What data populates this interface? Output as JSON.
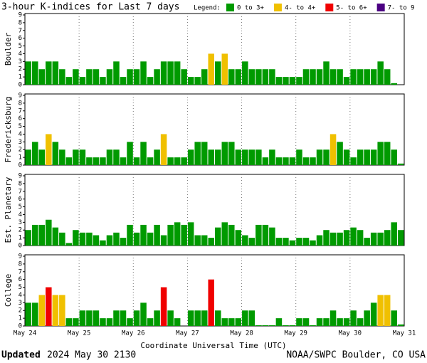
{
  "chart_data": {
    "type": "bar",
    "title": "3-hour K-indices for Last 7 days",
    "legend_title": "Legend:",
    "legend": [
      {
        "name": "0 to 3+",
        "color": "#009a00"
      },
      {
        "name": "4- to 4+",
        "color": "#f0c000"
      },
      {
        "name": "5- to 6+",
        "color": "#f00000"
      },
      {
        "name": "7- to 9",
        "color": "#4b0082"
      }
    ],
    "ylim": [
      0,
      9
    ],
    "yticks": [
      0,
      1,
      2,
      3,
      4,
      5,
      6,
      7,
      8,
      9
    ],
    "xticks": [
      "May 24",
      "May 25",
      "May 26",
      "May 27",
      "May 28",
      "May 29",
      "May 30",
      "May 31"
    ],
    "xlabel": "Coordinate Universal Time (UTC)",
    "panels": [
      {
        "name": "Boulder",
        "values": [
          3,
          3,
          2,
          3,
          3,
          2,
          1,
          2,
          1,
          2,
          2,
          1,
          2,
          3,
          1,
          2,
          2,
          3,
          1,
          2,
          3,
          3,
          3,
          2,
          1,
          1,
          2,
          4,
          3,
          4,
          2,
          2,
          3,
          2,
          2,
          2,
          2,
          1,
          1,
          1,
          1,
          2,
          2,
          2,
          3,
          2,
          2,
          1,
          2,
          2,
          2,
          2,
          3,
          2,
          0.2,
          null
        ],
        "colors": [
          "#009a00",
          "#009a00",
          "#009a00",
          "#009a00",
          "#009a00",
          "#009a00",
          "#009a00",
          "#009a00",
          "#009a00",
          "#009a00",
          "#009a00",
          "#009a00",
          "#009a00",
          "#009a00",
          "#009a00",
          "#009a00",
          "#009a00",
          "#009a00",
          "#009a00",
          "#009a00",
          "#009a00",
          "#009a00",
          "#009a00",
          "#009a00",
          "#009a00",
          "#009a00",
          "#009a00",
          "#f0c000",
          "#009a00",
          "#f0c000",
          "#009a00",
          "#009a00",
          "#009a00",
          "#009a00",
          "#009a00",
          "#009a00",
          "#009a00",
          "#009a00",
          "#009a00",
          "#009a00",
          "#009a00",
          "#009a00",
          "#009a00",
          "#009a00",
          "#009a00",
          "#009a00",
          "#009a00",
          "#009a00",
          "#009a00",
          "#009a00",
          "#009a00",
          "#009a00",
          "#009a00",
          "#009a00",
          "#009a00",
          "#009a00"
        ]
      },
      {
        "name": "Fredericksburg",
        "values": [
          2,
          3,
          2,
          4,
          3,
          2,
          1,
          2,
          2,
          1,
          1,
          1,
          2,
          2,
          1,
          3,
          1,
          3,
          1,
          2,
          4,
          1,
          1,
          1,
          2,
          3,
          3,
          2,
          2,
          3,
          3,
          2,
          2,
          2,
          2,
          1,
          2,
          1,
          1,
          1,
          2,
          1,
          1,
          2,
          2,
          4,
          3,
          2,
          1,
          2,
          2,
          2,
          3,
          3,
          2,
          0.2
        ],
        "colors": [
          "#009a00",
          "#009a00",
          "#009a00",
          "#f0c000",
          "#009a00",
          "#009a00",
          "#009a00",
          "#009a00",
          "#009a00",
          "#009a00",
          "#009a00",
          "#009a00",
          "#009a00",
          "#009a00",
          "#009a00",
          "#009a00",
          "#009a00",
          "#009a00",
          "#009a00",
          "#009a00",
          "#f0c000",
          "#009a00",
          "#009a00",
          "#009a00",
          "#009a00",
          "#009a00",
          "#009a00",
          "#009a00",
          "#009a00",
          "#009a00",
          "#009a00",
          "#009a00",
          "#009a00",
          "#009a00",
          "#009a00",
          "#009a00",
          "#009a00",
          "#009a00",
          "#009a00",
          "#009a00",
          "#009a00",
          "#009a00",
          "#009a00",
          "#009a00",
          "#009a00",
          "#f0c000",
          "#009a00",
          "#009a00",
          "#009a00",
          "#009a00",
          "#009a00",
          "#009a00",
          "#009a00",
          "#009a00",
          "#009a00",
          "#009a00"
        ]
      },
      {
        "name": "Est. Planetary",
        "values": [
          2,
          2.67,
          2.67,
          3.33,
          2.33,
          1.67,
          0.33,
          2,
          1.67,
          1.67,
          1.33,
          0.67,
          1.33,
          1.67,
          1,
          2.67,
          1.67,
          2.67,
          1.67,
          2.67,
          1.33,
          2.67,
          3,
          2.67,
          3,
          1.33,
          1.33,
          1,
          2.33,
          3,
          2.67,
          2,
          1.33,
          1,
          2.67,
          2.67,
          2.33,
          1,
          1,
          0.67,
          1,
          1,
          0.67,
          1.33,
          2,
          1.67,
          1.67,
          2,
          2.33,
          2,
          1,
          1.67,
          1.67,
          2,
          3,
          2
        ],
        "colors": [
          "#009a00",
          "#009a00",
          "#009a00",
          "#009a00",
          "#009a00",
          "#009a00",
          "#009a00",
          "#009a00",
          "#009a00",
          "#009a00",
          "#009a00",
          "#009a00",
          "#009a00",
          "#009a00",
          "#009a00",
          "#009a00",
          "#009a00",
          "#009a00",
          "#009a00",
          "#009a00",
          "#009a00",
          "#009a00",
          "#009a00",
          "#009a00",
          "#009a00",
          "#009a00",
          "#009a00",
          "#009a00",
          "#009a00",
          "#009a00",
          "#009a00",
          "#009a00",
          "#009a00",
          "#009a00",
          "#009a00",
          "#009a00",
          "#009a00",
          "#009a00",
          "#009a00",
          "#009a00",
          "#009a00",
          "#009a00",
          "#009a00",
          "#009a00",
          "#009a00",
          "#009a00",
          "#009a00",
          "#009a00",
          "#009a00",
          "#009a00",
          "#009a00",
          "#009a00",
          "#009a00",
          "#009a00",
          "#009a00",
          "#009a00"
        ]
      },
      {
        "name": "College",
        "values": [
          3,
          3,
          4,
          5,
          4,
          4,
          1,
          1,
          2,
          2,
          2,
          1,
          1,
          2,
          2,
          1,
          2,
          3,
          1,
          2,
          5,
          2,
          1,
          0,
          2,
          2,
          2,
          6,
          2,
          1,
          1,
          1,
          2,
          2,
          0.1,
          0.1,
          0.1,
          1,
          0.1,
          0.1,
          1,
          1,
          0.1,
          1,
          1,
          2,
          1,
          1,
          2,
          1,
          2,
          3,
          4,
          4,
          2,
          0.2
        ],
        "colors": [
          "#009a00",
          "#009a00",
          "#f0c000",
          "#f00000",
          "#f0c000",
          "#f0c000",
          "#009a00",
          "#009a00",
          "#009a00",
          "#009a00",
          "#009a00",
          "#009a00",
          "#009a00",
          "#009a00",
          "#009a00",
          "#009a00",
          "#009a00",
          "#009a00",
          "#009a00",
          "#009a00",
          "#f00000",
          "#009a00",
          "#009a00",
          "#009a00",
          "#009a00",
          "#009a00",
          "#009a00",
          "#f00000",
          "#009a00",
          "#009a00",
          "#009a00",
          "#009a00",
          "#009a00",
          "#009a00",
          "#009a00",
          "#009a00",
          "#009a00",
          "#009a00",
          "#009a00",
          "#009a00",
          "#009a00",
          "#009a00",
          "#009a00",
          "#009a00",
          "#009a00",
          "#009a00",
          "#009a00",
          "#009a00",
          "#009a00",
          "#009a00",
          "#009a00",
          "#009a00",
          "#f0c000",
          "#f0c000",
          "#009a00",
          "#009a00"
        ]
      }
    ],
    "updated_label": "Updated",
    "updated_time": "2024 May 30 2130",
    "credit": "NOAA/SWPC Boulder, CO USA"
  }
}
